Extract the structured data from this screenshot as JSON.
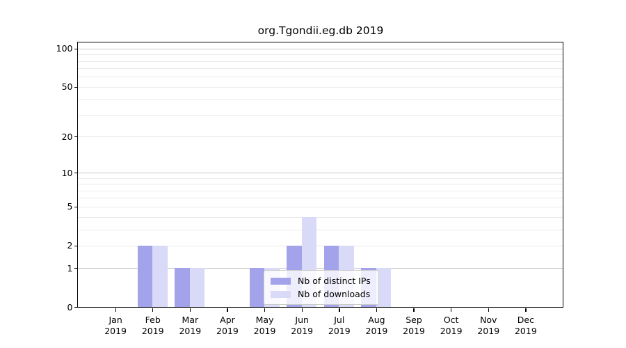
{
  "chart_data": {
    "type": "bar",
    "title": "org.Tgondii.eg.db 2019",
    "categories": [
      "Jan",
      "Feb",
      "Mar",
      "Apr",
      "May",
      "Jun",
      "Jul",
      "Aug",
      "Sep",
      "Oct",
      "Nov",
      "Dec"
    ],
    "category_year": "2019",
    "series": [
      {
        "name": "Nb of distinct IPs",
        "color": "#a3a3ec",
        "values": [
          0,
          2,
          1,
          0,
          1,
          2,
          2,
          1,
          0,
          0,
          0,
          0
        ]
      },
      {
        "name": "Nb of downloads",
        "color": "#d9d9f8",
        "values": [
          0,
          2,
          1,
          0,
          1,
          4,
          2,
          1,
          0,
          0,
          0,
          0
        ]
      }
    ],
    "xlabel": "",
    "ylabel": "",
    "yscale": "log1p",
    "ylim": [
      0,
      113
    ],
    "yticks": [
      0,
      1,
      2,
      5,
      10,
      20,
      50,
      100
    ],
    "grid": {
      "major_values": [
        1,
        10,
        100
      ],
      "minor_values": [
        2,
        3,
        4,
        5,
        6,
        7,
        8,
        9,
        20,
        30,
        40,
        50,
        60,
        70,
        80,
        90
      ],
      "major_color": "#c9c9c9",
      "minor_color": "#eaeaea"
    },
    "legend": {
      "position": "lower center",
      "entries": [
        "Nb of distinct IPs",
        "Nb of downloads"
      ]
    },
    "colors": {
      "spine": "#000000",
      "text": "#000000",
      "background": "#ffffff"
    }
  }
}
